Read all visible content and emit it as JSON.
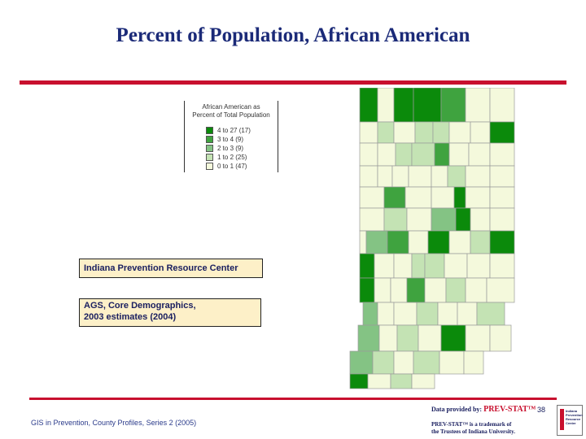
{
  "title": "Percent of Population, African American",
  "legend": {
    "title_line1": "African American as",
    "title_line2": "Percent of Total Population",
    "classes": [
      {
        "label": "4 to 27  (17)",
        "color": "#0b8a0b"
      },
      {
        "label": "3 to 4  (9)",
        "color": "#3fa33f"
      },
      {
        "label": "2 to 3  (9)",
        "color": "#84c384"
      },
      {
        "label": "1 to 2  (25)",
        "color": "#c4e3b4"
      },
      {
        "label": "0 to 1  (47)",
        "color": "#f4f9dc"
      }
    ]
  },
  "info_org": "Indiana Prevention Resource Center",
  "info_source_line1": "AGS, Core Demographics,",
  "info_source_line2": "2003 estimates (2004)",
  "footer": "GIS in Prevention, County Profiles, Series 2 (2005)",
  "provided_by": "Data provided by:",
  "brand": "PREV-STAT™",
  "trademark_line1": "PREV-STAT™ is a trademark of",
  "trademark_line2": "the Trustees of Indiana University.",
  "page_number": "38",
  "logo_text": "Indiana Prevention Resource Center"
}
